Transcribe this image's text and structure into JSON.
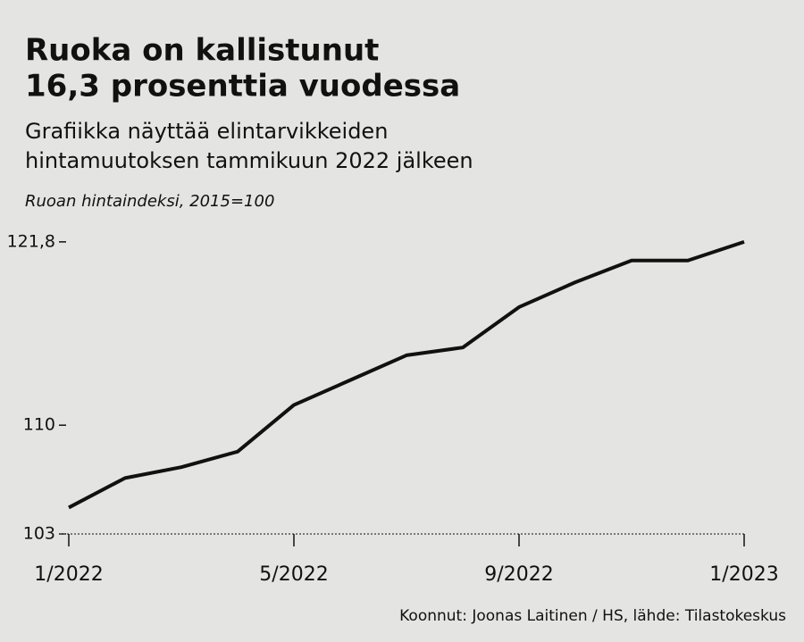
{
  "chart_data": {
    "type": "line",
    "title": [
      "Ruoka on kallistunut",
      "16,3 prosenttia vuodessa"
    ],
    "subtitle": [
      "Grafiikka näyttää elintarvikkeiden",
      "hintamuutoksen tammikuun 2022 jälkeen"
    ],
    "y_label": "Ruoan hintaindeksi, 2015=100",
    "source": "Koonnut: Joonas Laitinen / HS, lähde: Tilastokeskus",
    "categories": [
      "1/2022",
      null,
      null,
      null,
      "5/2022",
      null,
      null,
      null,
      "9/2022",
      null,
      null,
      null,
      "1/2023"
    ],
    "values": [
      104.7,
      106.6,
      107.3,
      108.3,
      111.3,
      112.9,
      114.5,
      115.0,
      117.6,
      119.2,
      120.6,
      120.6,
      121.8
    ],
    "color": "#111111",
    "ylim": [
      103,
      123
    ],
    "yticks": [
      103,
      110,
      {
        "value": 121.8,
        "label": "121,8"
      }
    ]
  }
}
